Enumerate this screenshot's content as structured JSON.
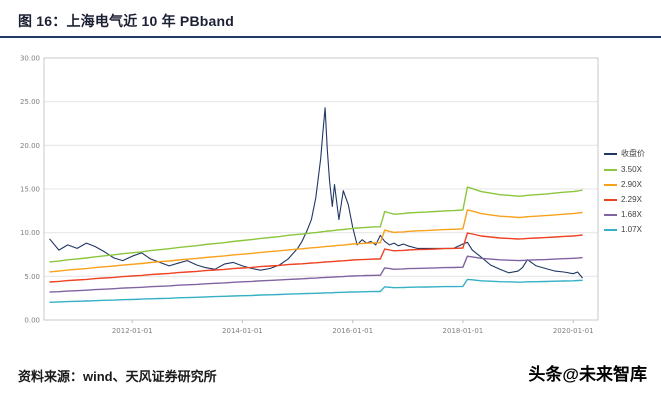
{
  "header": {
    "title": "图 16：上海电气近 10 年 PBband"
  },
  "footer": {
    "source": "资料来源：wind、天风证券研究所",
    "watermark": "头条@未来智库"
  },
  "colors": {
    "accent_rule": "#1F3864",
    "gridline": "#e4e4e4",
    "plot_border": "#c9c9c9",
    "tick_text": "#7f7f7f"
  },
  "chart_data": {
    "type": "line",
    "title": "图 16：上海电气近 10 年 PBband",
    "xlabel": "",
    "ylabel": "",
    "grid": "horizontal",
    "legend_position": "right",
    "xlim": [
      2010.4,
      2020.45
    ],
    "ylim": [
      0,
      30
    ],
    "y_ticks": [
      {
        "value": 0,
        "label": "0.00"
      },
      {
        "value": 5,
        "label": "5.00"
      },
      {
        "value": 10,
        "label": "10.00"
      },
      {
        "value": 15,
        "label": "15.00"
      },
      {
        "value": 20,
        "label": "20.00"
      },
      {
        "value": 25,
        "label": "25.00"
      },
      {
        "value": 30,
        "label": "30.00"
      }
    ],
    "x_ticks": [
      {
        "value": 2012,
        "label": "2012-01-01"
      },
      {
        "value": 2014,
        "label": "2014-01-01"
      },
      {
        "value": 2016,
        "label": "2016-01-01"
      },
      {
        "value": 2018,
        "label": "2018-01-01"
      },
      {
        "value": 2020,
        "label": "2020-01-01"
      }
    ],
    "x": [
      2010.5,
      2010.67,
      2010.83,
      2011.0,
      2011.17,
      2011.33,
      2011.5,
      2011.67,
      2011.83,
      2012.0,
      2012.17,
      2012.33,
      2012.5,
      2012.67,
      2012.83,
      2013.0,
      2013.17,
      2013.33,
      2013.5,
      2013.67,
      2013.83,
      2014.0,
      2014.17,
      2014.33,
      2014.5,
      2014.67,
      2014.83,
      2015.0,
      2015.08,
      2015.17,
      2015.25,
      2015.33,
      2015.42,
      2015.46,
      2015.5,
      2015.54,
      2015.58,
      2015.63,
      2015.67,
      2015.75,
      2015.83,
      2015.92,
      2016.0,
      2016.08,
      2016.17,
      2016.25,
      2016.33,
      2016.42,
      2016.5,
      2016.58,
      2016.67,
      2016.75,
      2016.83,
      2016.92,
      2017.0,
      2017.17,
      2017.33,
      2017.5,
      2017.67,
      2017.83,
      2018.0,
      2018.08,
      2018.17,
      2018.33,
      2018.5,
      2018.67,
      2018.83,
      2019.0,
      2019.08,
      2019.17,
      2019.33,
      2019.5,
      2019.67,
      2019.83,
      2020.0,
      2020.08,
      2020.17
    ],
    "bvps": [
      1.9,
      1.93,
      1.97,
      2.0,
      2.03,
      2.07,
      2.1,
      2.13,
      2.17,
      2.2,
      2.23,
      2.27,
      2.3,
      2.33,
      2.37,
      2.4,
      2.43,
      2.47,
      2.5,
      2.53,
      2.57,
      2.6,
      2.63,
      2.67,
      2.7,
      2.73,
      2.77,
      2.8,
      2.81,
      2.83,
      2.85,
      2.86,
      2.88,
      2.89,
      2.9,
      2.91,
      2.91,
      2.92,
      2.93,
      2.95,
      2.96,
      2.98,
      3.0,
      3.01,
      3.02,
      3.03,
      3.04,
      3.05,
      3.05,
      3.55,
      3.5,
      3.46,
      3.47,
      3.48,
      3.5,
      3.52,
      3.53,
      3.55,
      3.57,
      3.58,
      3.6,
      4.35,
      4.3,
      4.2,
      4.15,
      4.1,
      4.08,
      4.05,
      4.06,
      4.08,
      4.1,
      4.12,
      4.15,
      4.18,
      4.2,
      4.22,
      4.25
    ],
    "series": [
      {
        "name": "收盘价",
        "color": "#1F3864",
        "values": [
          9.3,
          8.0,
          8.6,
          8.2,
          8.8,
          8.4,
          7.8,
          7.1,
          6.8,
          7.3,
          7.7,
          7.0,
          6.6,
          6.2,
          6.5,
          6.8,
          6.3,
          6.0,
          5.8,
          6.4,
          6.6,
          6.2,
          5.9,
          5.7,
          5.9,
          6.3,
          7.0,
          8.2,
          9.0,
          10.2,
          11.5,
          14.0,
          18.5,
          21.5,
          24.3,
          19.5,
          16.0,
          13.0,
          15.5,
          11.5,
          14.8,
          13.2,
          10.6,
          8.6,
          9.2,
          8.8,
          9.0,
          8.6,
          9.7,
          9.0,
          8.6,
          8.8,
          8.5,
          8.7,
          8.5,
          8.2,
          8.2,
          8.2,
          8.2,
          8.2,
          8.7,
          8.9,
          8.0,
          7.2,
          6.3,
          5.8,
          5.4,
          5.6,
          6.0,
          6.9,
          6.2,
          5.9,
          5.6,
          5.5,
          5.3,
          5.5,
          4.8
        ]
      },
      {
        "name": "3.50X",
        "color": "#8CC63F",
        "multiple": 3.5
      },
      {
        "name": "2.90X",
        "color": "#F9A11B",
        "multiple": 2.9
      },
      {
        "name": "2.29X",
        "color": "#EF4123",
        "multiple": 2.29
      },
      {
        "name": "1.68X",
        "color": "#8064A2",
        "multiple": 1.68
      },
      {
        "name": "1.07X",
        "color": "#35B0C5",
        "multiple": 1.07
      }
    ]
  }
}
